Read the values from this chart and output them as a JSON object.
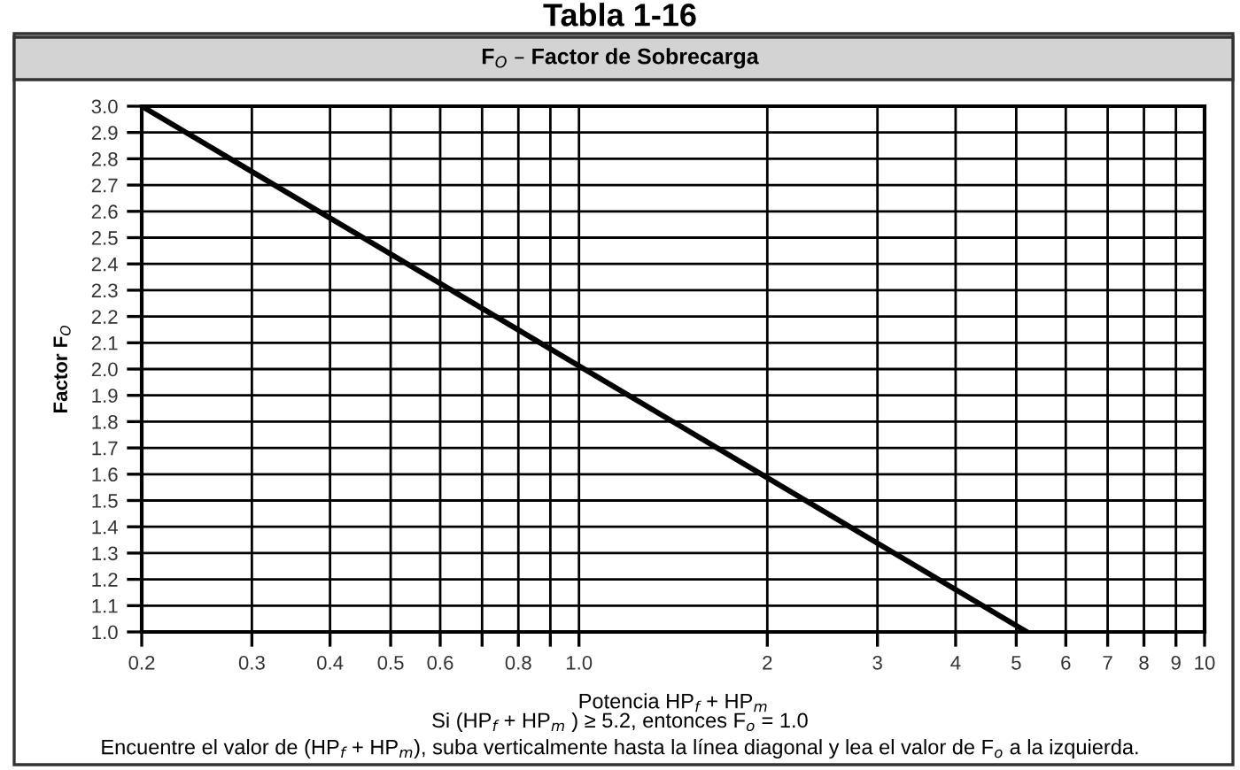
{
  "chart_data": {
    "type": "line",
    "title": "Tabla 1-16",
    "subtitle": "F$_{O}$ – Factor de Sobrecarga",
    "xlabel": "Potencia HP$_{f}$ + HP$_{m}$",
    "ylabel": "Factor F$_{O}$",
    "annotations": [
      "Si (HP$_{f}$ + HP$_{m}$ ) ≥ 5.2, entonces F$_{o}$ = 1.0",
      "Encuentre el valor de (HP$_{f}$ + HP$_{m}$), suba verticalmente hasta la línea diagonal y lea el valor de F$_{o}$ a la izquierda."
    ],
    "log": "x",
    "xlim": [
      0.2,
      10
    ],
    "ylim": [
      1.0,
      3.0
    ],
    "xticks": [
      0.2,
      0.3,
      0.4,
      0.5,
      0.6,
      {
        "value": 0.7,
        "label": null
      },
      0.8,
      {
        "value": 0.9,
        "label": null
      },
      {
        "value": 1,
        "label": "1.0"
      },
      2,
      3,
      4,
      5,
      6,
      7,
      8,
      9,
      10
    ],
    "yticks": [
      {
        "value": 1,
        "label": "1.0"
      },
      1.1,
      1.2,
      1.3,
      1.4,
      1.5,
      1.6,
      1.7,
      1.8,
      1.9,
      {
        "value": 2,
        "label": "2.0"
      },
      2.1,
      2.2,
      2.3,
      2.4,
      2.5,
      2.6,
      2.7,
      2.8,
      2.9,
      {
        "value": 3,
        "label": "3.0"
      }
    ],
    "grid": true,
    "marker": "none",
    "line_style": "solid",
    "series": [
      {
        "color": "#000000",
        "x": [
          0.2,
          5.2
        ],
        "values": [
          3.0,
          1.0
        ]
      }
    ]
  }
}
